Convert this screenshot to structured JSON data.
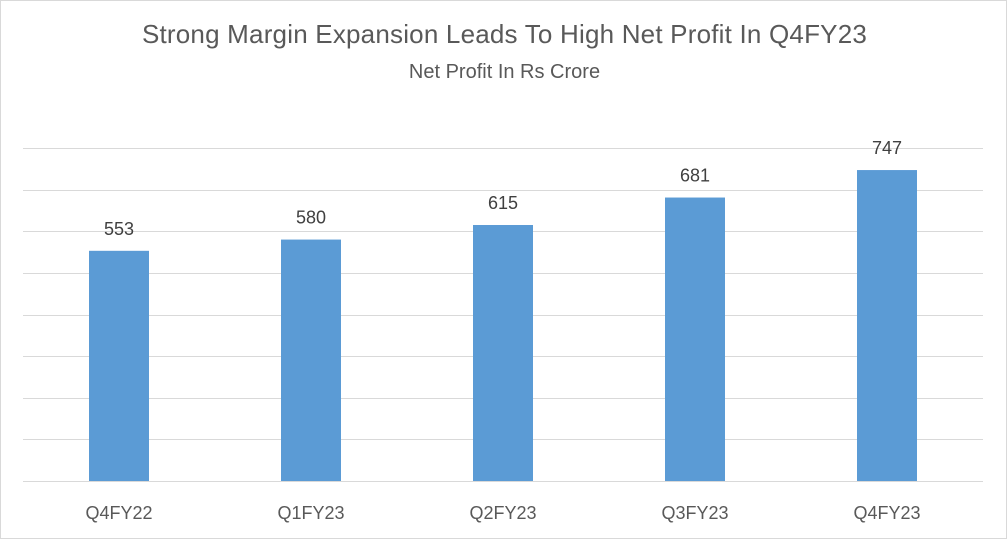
{
  "chart_data": {
    "type": "bar",
    "title": "Strong Margin Expansion Leads To High Net Profit In Q4FY23",
    "subtitle": "Net Profit In Rs Crore",
    "xlabel": "",
    "ylabel": "",
    "categories": [
      "Q4FY22",
      "Q1FY23",
      "Q2FY23",
      "Q3FY23",
      "Q4FY23"
    ],
    "series": [
      {
        "values": [
          553,
          580,
          615,
          681,
          747
        ],
        "color": "#5b9bd5"
      }
    ],
    "data_labels": [
      "553",
      "580",
      "615",
      "681",
      "747"
    ],
    "ylim": [
      0,
      800
    ],
    "y_gridline_step": 100,
    "y_tick_labels_shown": false,
    "grid": true,
    "legend": "none"
  }
}
